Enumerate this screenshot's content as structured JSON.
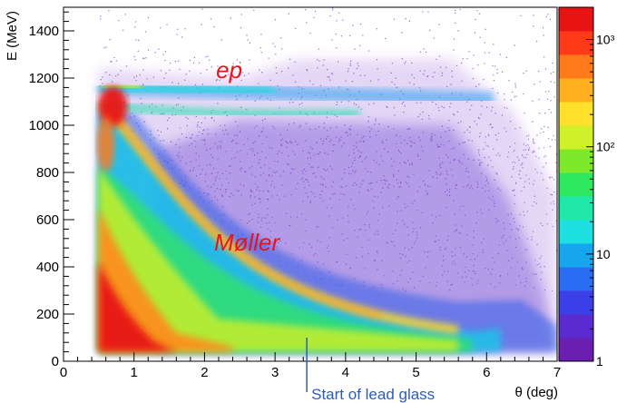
{
  "chart_data": {
    "type": "heatmap",
    "title": "",
    "xlabel": "θ (deg)",
    "ylabel": "E (MeV)",
    "xlim": [
      0,
      7
    ],
    "ylim": [
      0,
      1500
    ],
    "x_ticks": [
      0,
      1,
      2,
      3,
      4,
      5,
      6,
      7
    ],
    "x_tick_labels": [
      "0",
      "1",
      "2",
      "3",
      "4",
      "5",
      "6",
      "7"
    ],
    "y_ticks": [
      0,
      200,
      400,
      600,
      800,
      1000,
      1200,
      1400
    ],
    "y_tick_labels": [
      "0",
      "200",
      "400",
      "600",
      "800",
      "1000",
      "1200",
      "1400"
    ],
    "z_scale": "log",
    "zlim": [
      1,
      2000
    ],
    "colorbar_ticks": [
      1,
      10,
      100,
      1000
    ],
    "colorbar_tick_labels": [
      "1",
      "10",
      "10²",
      "10³"
    ],
    "colorbar_colors": [
      "#6a1fb0",
      "#5a2ccf",
      "#3b3fe8",
      "#2a6df2",
      "#17a6ee",
      "#1fe0e0",
      "#20e8a8",
      "#2ee860",
      "#7ee82a",
      "#d0f02a",
      "#ffe02a",
      "#ffb020",
      "#ff7a1a",
      "#ff3a18",
      "#e81414"
    ],
    "grid": false,
    "regions": [
      {
        "label": "ep",
        "x": 2.3,
        "y": 1150,
        "description": "elastic ep band near E≈1150 MeV"
      },
      {
        "label": "Møller",
        "x": 3.0,
        "y": 450,
        "description": "Møller scattering band, E falls with θ"
      }
    ],
    "annotations": [
      {
        "label": "ep",
        "x": 2.35,
        "y": 1230
      },
      {
        "label": "Møller",
        "x": 2.6,
        "y": 500
      },
      {
        "label": "Start of lead glass",
        "x": 3.45
      }
    ]
  }
}
